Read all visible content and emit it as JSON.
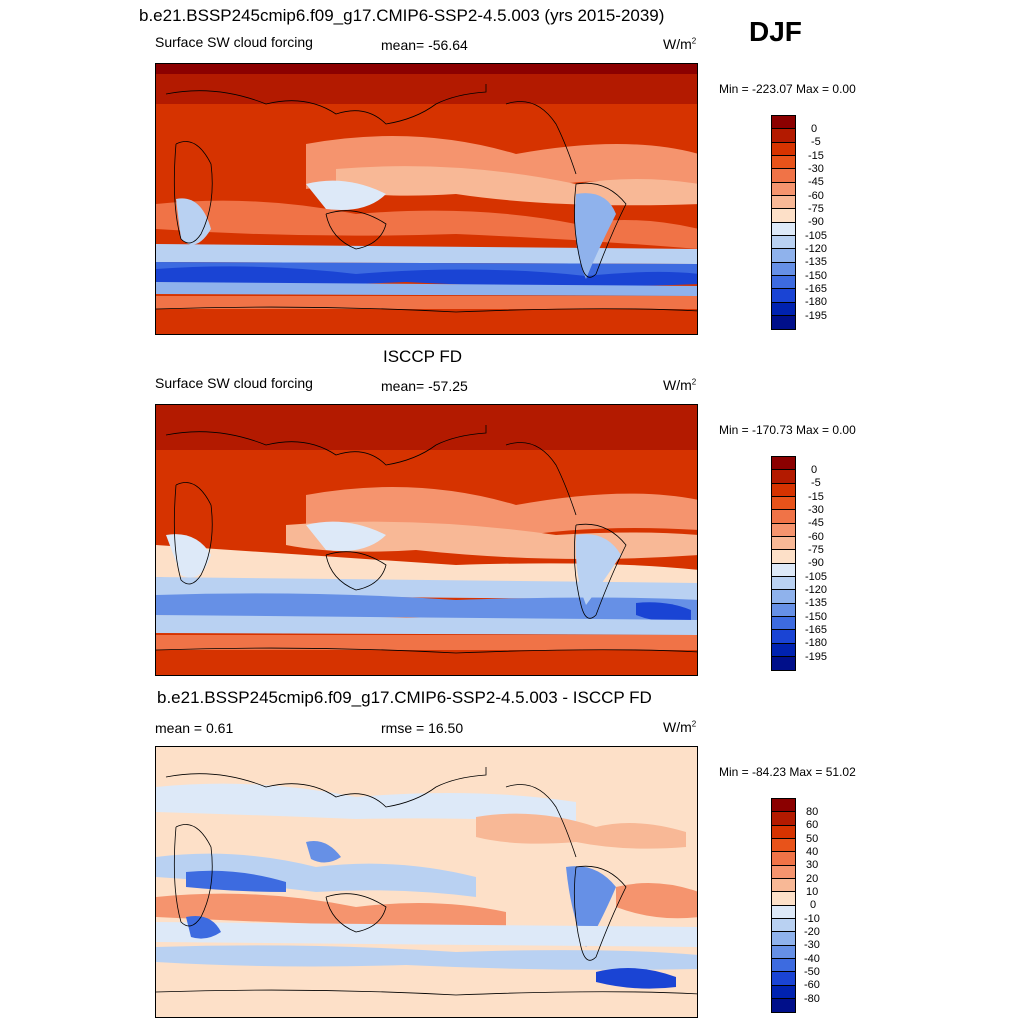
{
  "season": "DJF",
  "panels": [
    {
      "title": "b.e21.BSSP245cmip6.f09_g17.CMIP6-SSP2-4.5.003 (yrs 2015-2039)",
      "left_label": "Surface SW cloud forcing",
      "center_label": "mean= -56.64",
      "units": "W/m",
      "units_sup": "2",
      "minmax": "Min = -223.07 Max =   0.00",
      "colorbar_labels": [
        "0",
        "-5",
        "-15",
        "-30",
        "-45",
        "-60",
        "-75",
        "-90",
        "-105",
        "-120",
        "-135",
        "-150",
        "-165",
        "-180",
        "-195"
      ]
    },
    {
      "title": "ISCCP FD",
      "left_label": "Surface SW cloud forcing",
      "center_label": "mean= -57.25",
      "units": "W/m",
      "units_sup": "2",
      "minmax": "Min = -170.73 Max =   0.00",
      "colorbar_labels": [
        "0",
        "-5",
        "-15",
        "-30",
        "-45",
        "-60",
        "-75",
        "-90",
        "-105",
        "-120",
        "-135",
        "-150",
        "-165",
        "-180",
        "-195"
      ]
    },
    {
      "title": "b.e21.BSSP245cmip6.f09_g17.CMIP6-SSP2-4.5.003 - ISCCP FD",
      "left_label": "mean =   0.61",
      "center_label": "rmse =  16.50",
      "units": "W/m",
      "units_sup": "2",
      "minmax": "Min = -84.23 Max =  51.02",
      "colorbar_labels": [
        "80",
        "60",
        "50",
        "40",
        "30",
        "20",
        "10",
        "0",
        "-10",
        "-20",
        "-30",
        "-40",
        "-50",
        "-60",
        "-80"
      ]
    }
  ],
  "colors": {
    "scale": [
      "#8b0000",
      "#b31a00",
      "#d63300",
      "#e8531a",
      "#f07347",
      "#f5946e",
      "#f8b896",
      "#fde0c8",
      "#dde9f8",
      "#b9d1f2",
      "#8fb2ec",
      "#6690e6",
      "#3d6be0",
      "#1a44d4",
      "#0022b0",
      "#000f8a"
    ]
  }
}
